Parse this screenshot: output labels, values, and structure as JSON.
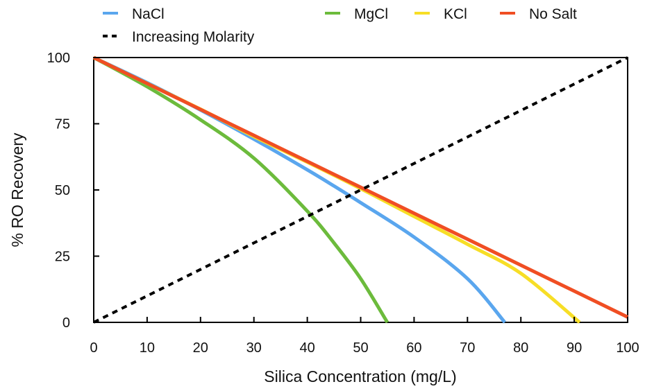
{
  "chart_data": {
    "type": "line",
    "title": "",
    "xlabel": "Silica Concentration (mg/L)",
    "ylabel": "% RO Recovery",
    "xlim": [
      0,
      100
    ],
    "ylim": [
      0,
      100
    ],
    "xticks": [
      "0",
      "10",
      "20",
      "30",
      "40",
      "50",
      "60",
      "70",
      "80",
      "90",
      "100"
    ],
    "yticks": [
      "0",
      "25",
      "50",
      "75",
      "100"
    ],
    "grid": false,
    "legend_position": "top",
    "series": [
      {
        "name": "NaCl",
        "color": "#5AA6EE",
        "style": "solid",
        "x": [
          0,
          10,
          20,
          30,
          40,
          45,
          50,
          60,
          70,
          77
        ],
        "y": [
          100,
          90.5,
          80.2,
          69.2,
          57.6,
          51.5,
          45.2,
          32.2,
          16.5,
          0
        ]
      },
      {
        "name": "MgCl",
        "color": "#6CBB3C",
        "style": "solid",
        "x": [
          0,
          10,
          20,
          30,
          40,
          45,
          50,
          55
        ],
        "y": [
          100,
          89,
          76.5,
          62,
          42,
          30,
          16.5,
          0
        ]
      },
      {
        "name": "KCl",
        "color": "#F7DE26",
        "style": "solid",
        "x": [
          0,
          10,
          20,
          30,
          40,
          50,
          60,
          70,
          80,
          91
        ],
        "y": [
          100,
          90.2,
          80.5,
          70.2,
          60.5,
          50.5,
          40,
          29.5,
          18.5,
          0
        ]
      },
      {
        "name": "No Salt",
        "color": "#F04E23",
        "style": "solid",
        "x": [
          0,
          10,
          20,
          30,
          40,
          50,
          60,
          70,
          80,
          90,
          100
        ],
        "y": [
          100,
          90.2,
          80.4,
          70.6,
          60.8,
          51,
          41.2,
          31.4,
          21.6,
          11.8,
          2
        ]
      },
      {
        "name": "Increasing Molarity",
        "color": "#000000",
        "style": "dashed",
        "x": [
          0,
          100
        ],
        "y": [
          0,
          100
        ]
      }
    ]
  }
}
